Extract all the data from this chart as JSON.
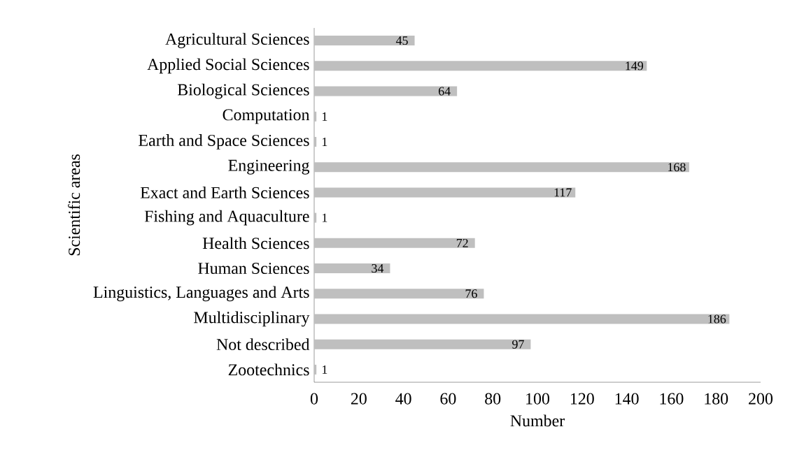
{
  "chart_data": {
    "type": "bar",
    "orientation": "horizontal",
    "xlabel": "Number",
    "ylabel": "Scientific areas",
    "categories": [
      "Agricultural Sciences",
      "Applied Social Sciences",
      "Biological Sciences",
      "Computation",
      "Earth and Space Sciences",
      "Engineering",
      "Exact and Earth Sciences",
      "Fishing and Aquaculture",
      "Health Sciences",
      "Human Sciences",
      "Linguistics, Languages and Arts",
      "Multidisciplinary",
      "Not described",
      "Zootechnics"
    ],
    "values": [
      45,
      149,
      64,
      1,
      1,
      168,
      117,
      1,
      72,
      34,
      76,
      186,
      97,
      1
    ],
    "color": "#bfbfbf",
    "data_labels": true,
    "xlim": [
      0,
      200
    ],
    "xticks": [
      0,
      20,
      40,
      60,
      80,
      100,
      120,
      140,
      160,
      180,
      200
    ],
    "grid": false
  }
}
